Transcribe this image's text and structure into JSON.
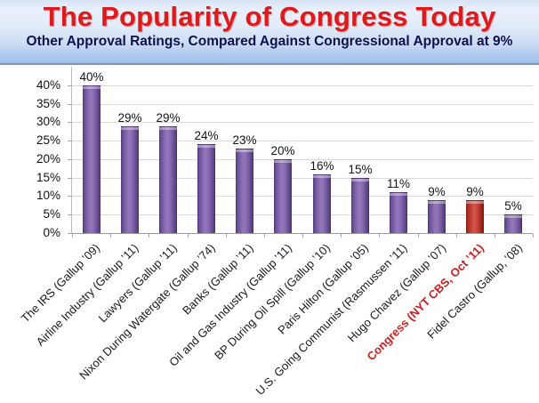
{
  "chart_data": {
    "type": "bar",
    "title": "The Popularity of Congress Today",
    "subtitle": "Other Approval Ratings, Compared Against Congressional Approval at 9%",
    "categories": [
      "The IRS (Gallup ’09)",
      "Airline Industry (Gallup ’11)",
      "Lawyers (Gallup ’11)",
      "Nixon During Watergate (Gallup ’74)",
      "Banks (Gallup ’11)",
      "Oil and Gas Industry (Gallup ’11)",
      "BP During Oil Spill (Gallup ’10)",
      "Paris Hilton (Gallup ’05)",
      "U.S. Going Communist (Rasmussen ’11)",
      "Hugo Chavez (Gallup ’07)",
      "Congress (NYT CBS, Oct ’11)",
      "Fidel Castro (Gallup, ’08)"
    ],
    "values": [
      40,
      29,
      29,
      24,
      23,
      20,
      16,
      15,
      11,
      9,
      9,
      5
    ],
    "data_labels": [
      "40%",
      "29%",
      "29%",
      "24%",
      "23%",
      "20%",
      "16%",
      "15%",
      "11%",
      "9%",
      "9%",
      "5%"
    ],
    "highlight_index": 10,
    "y_ticks": [
      "0%",
      "5%",
      "10%",
      "15%",
      "20%",
      "25%",
      "30%",
      "35%",
      "40%"
    ],
    "ylim": [
      0,
      40
    ],
    "grid": true,
    "legend": "none",
    "xlabel": "",
    "ylabel": "",
    "colors": {
      "bar": "#7a5ca6",
      "bar_edge": "#483566",
      "highlight_bar": "#c0392b",
      "highlight_edge": "#75190f",
      "title": "#de1a1a",
      "subtitle": "#10104e",
      "highlight_label": "#cc1f1f",
      "gridline": "#d9d9d9",
      "header_band": "#a2c0ed"
    }
  }
}
